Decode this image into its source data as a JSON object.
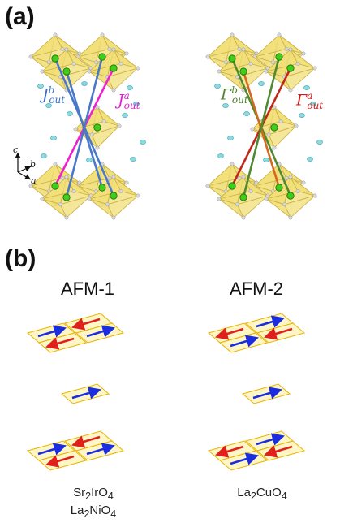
{
  "panels": {
    "a": {
      "label": "(a)"
    },
    "b": {
      "label": "(b)"
    }
  },
  "couplings": {
    "left_b": {
      "symbol": "J",
      "sup": "b",
      "sub": "out",
      "color": "#3b6fc4"
    },
    "left_a": {
      "symbol": "J",
      "sup": "a",
      "sub": "out",
      "color": "#e020d0"
    },
    "right_b": {
      "symbol": "Γ",
      "sup": "b",
      "sub": "out",
      "color": "#4f7f32"
    },
    "right_a": {
      "symbol": "Γ",
      "sup": "a",
      "sub": "out",
      "color": "#d01818"
    }
  },
  "axes": {
    "c": "c",
    "b": "b",
    "a": "a"
  },
  "bond_colors": {
    "left_b": "#4a78c8",
    "left_a": "#ee22cc",
    "right_b": "#4f8a32",
    "right_a": "#c0281a",
    "right_a_alt": "#d2691e"
  },
  "columns": {
    "afm1": {
      "title": "AFM-1",
      "compound_1": {
        "base1": "Sr",
        "sub1": "2",
        "base2": "IrO",
        "sub2": "4"
      },
      "compound_2": {
        "base1": "La",
        "sub1": "2",
        "base2": "NiO",
        "sub2": "4"
      }
    },
    "afm2": {
      "title": "AFM-2",
      "compound_1": {
        "base1": "La",
        "sub1": "2",
        "base2": "CuO",
        "sub2": "4"
      }
    }
  },
  "colors": {
    "octahedron_fill": "#f2df78",
    "octahedron_edge": "#c9b040",
    "green_atom": "#3fcf1a",
    "cyan_atom": "#8fd8e0",
    "grey_atom": "#d8d8d8",
    "plaquette_fill": "#fff6c8",
    "plaquette_edge": "#e6b400",
    "spin_blue": "#1a2ee0",
    "spin_red": "#e0201a"
  }
}
